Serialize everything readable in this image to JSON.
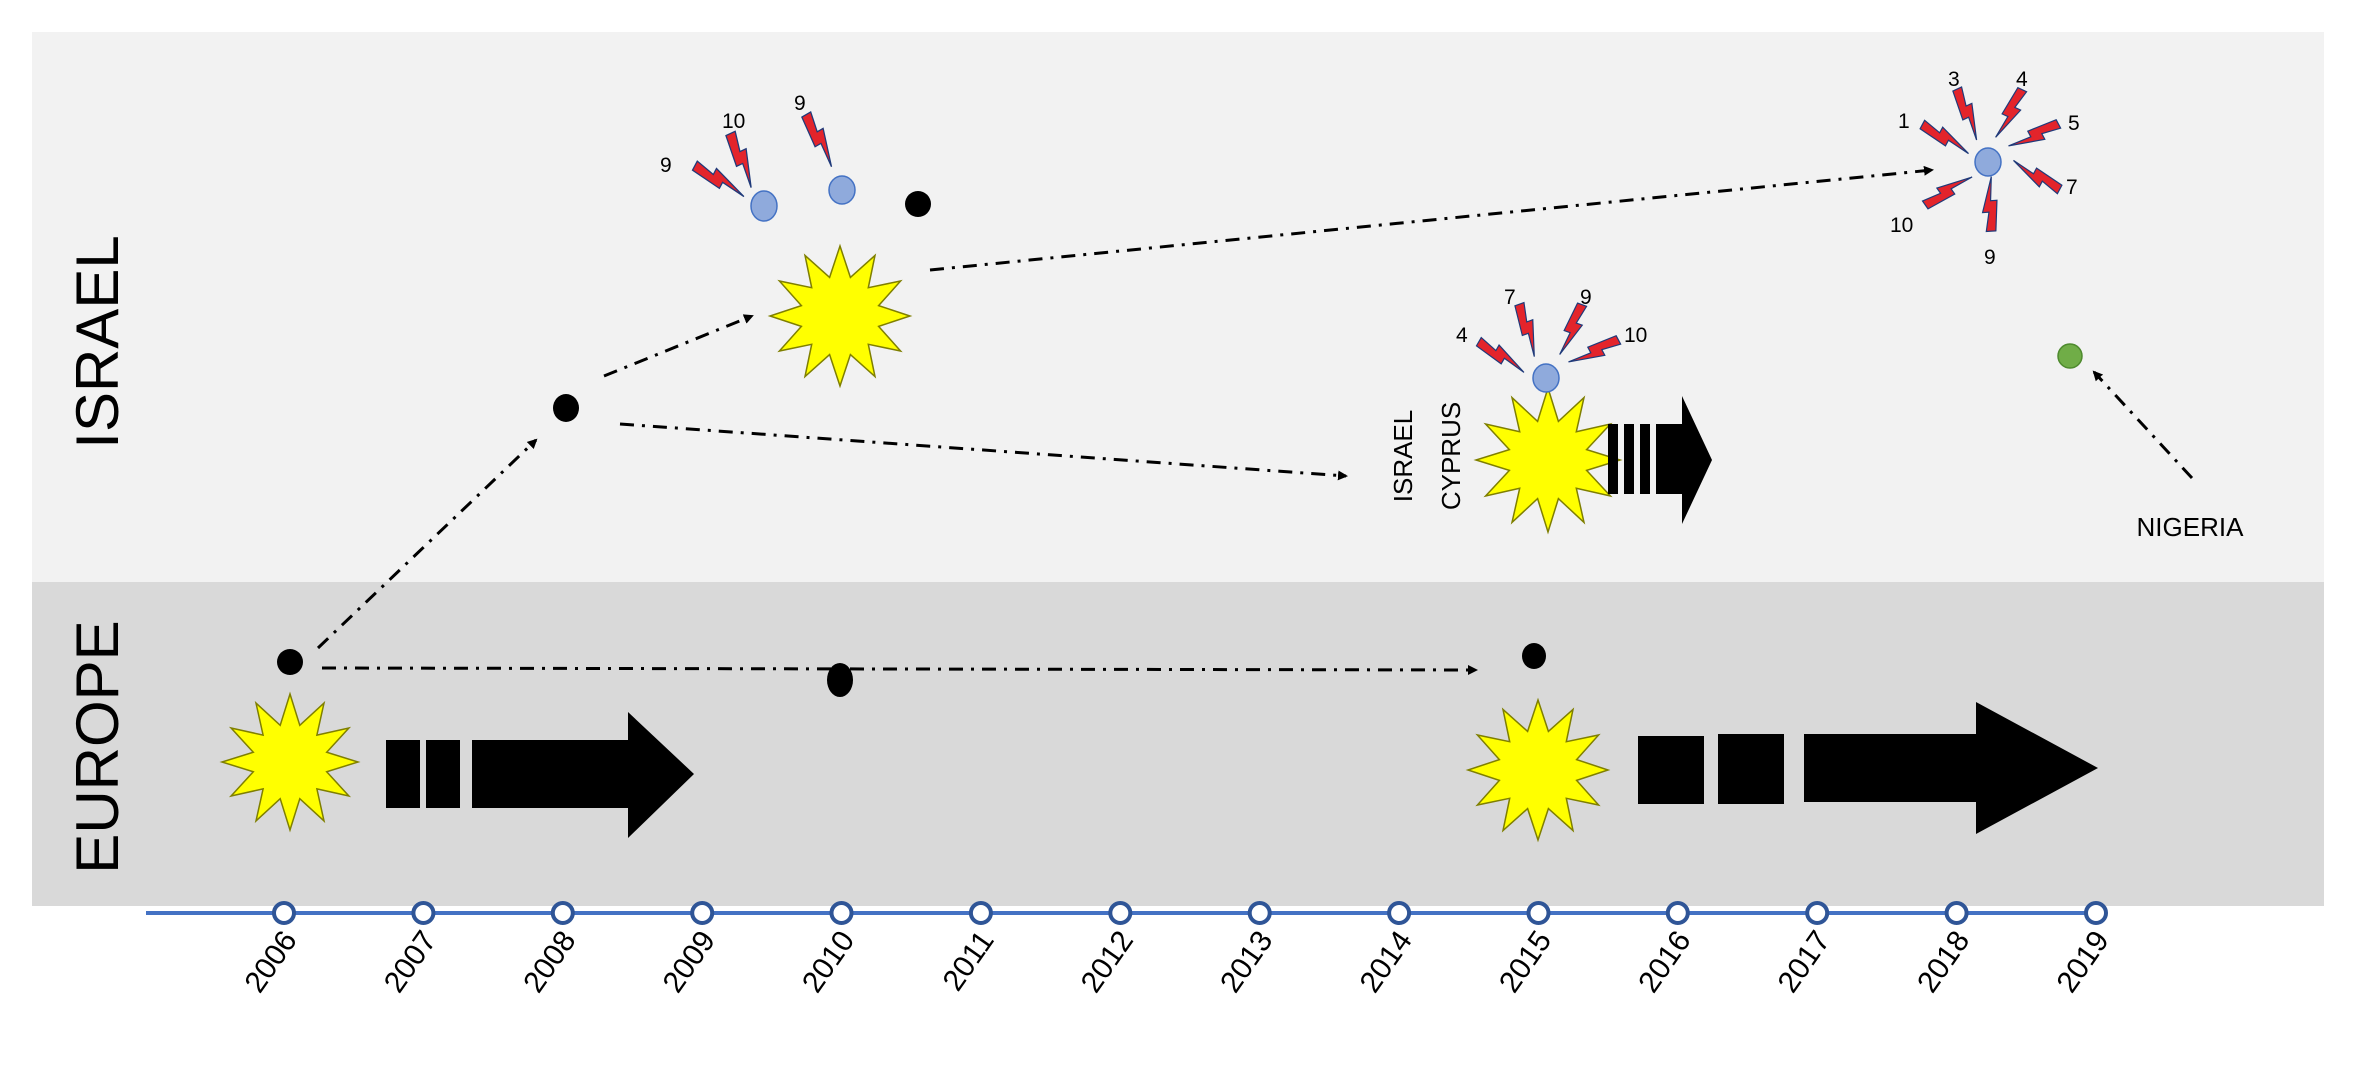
{
  "regions": {
    "israel": "ISRAEL",
    "europe": "EUROPE"
  },
  "timeline": {
    "years": [
      "2006",
      "2007",
      "2008",
      "2009",
      "2010",
      "2011",
      "2012",
      "2013",
      "2014",
      "2015",
      "2016",
      "2017",
      "2018",
      "2019"
    ]
  },
  "places": {
    "israel_cyprus_line1": "ISRAEL",
    "israel_cyprus_line2": "CYPRUS",
    "nigeria": "NIGERIA"
  },
  "lightning_groups": {
    "israel_2009": [
      "9",
      "10"
    ],
    "israel_2010": [
      "9"
    ],
    "israel_cyprus_2015": [
      "4",
      "7",
      "9",
      "10"
    ],
    "israel_2018": [
      "1",
      "3",
      "4",
      "5",
      "7",
      "9",
      "10"
    ]
  },
  "colors": {
    "israel_band": "#f2f2f2",
    "europe_band": "#d9d9d9",
    "timeline": "#4472c4",
    "outbreak_star": "#ffff00",
    "lightning": "#e3242b",
    "blue_node": "#8faadc",
    "green_node": "#70ad47",
    "black_node": "#000000"
  }
}
